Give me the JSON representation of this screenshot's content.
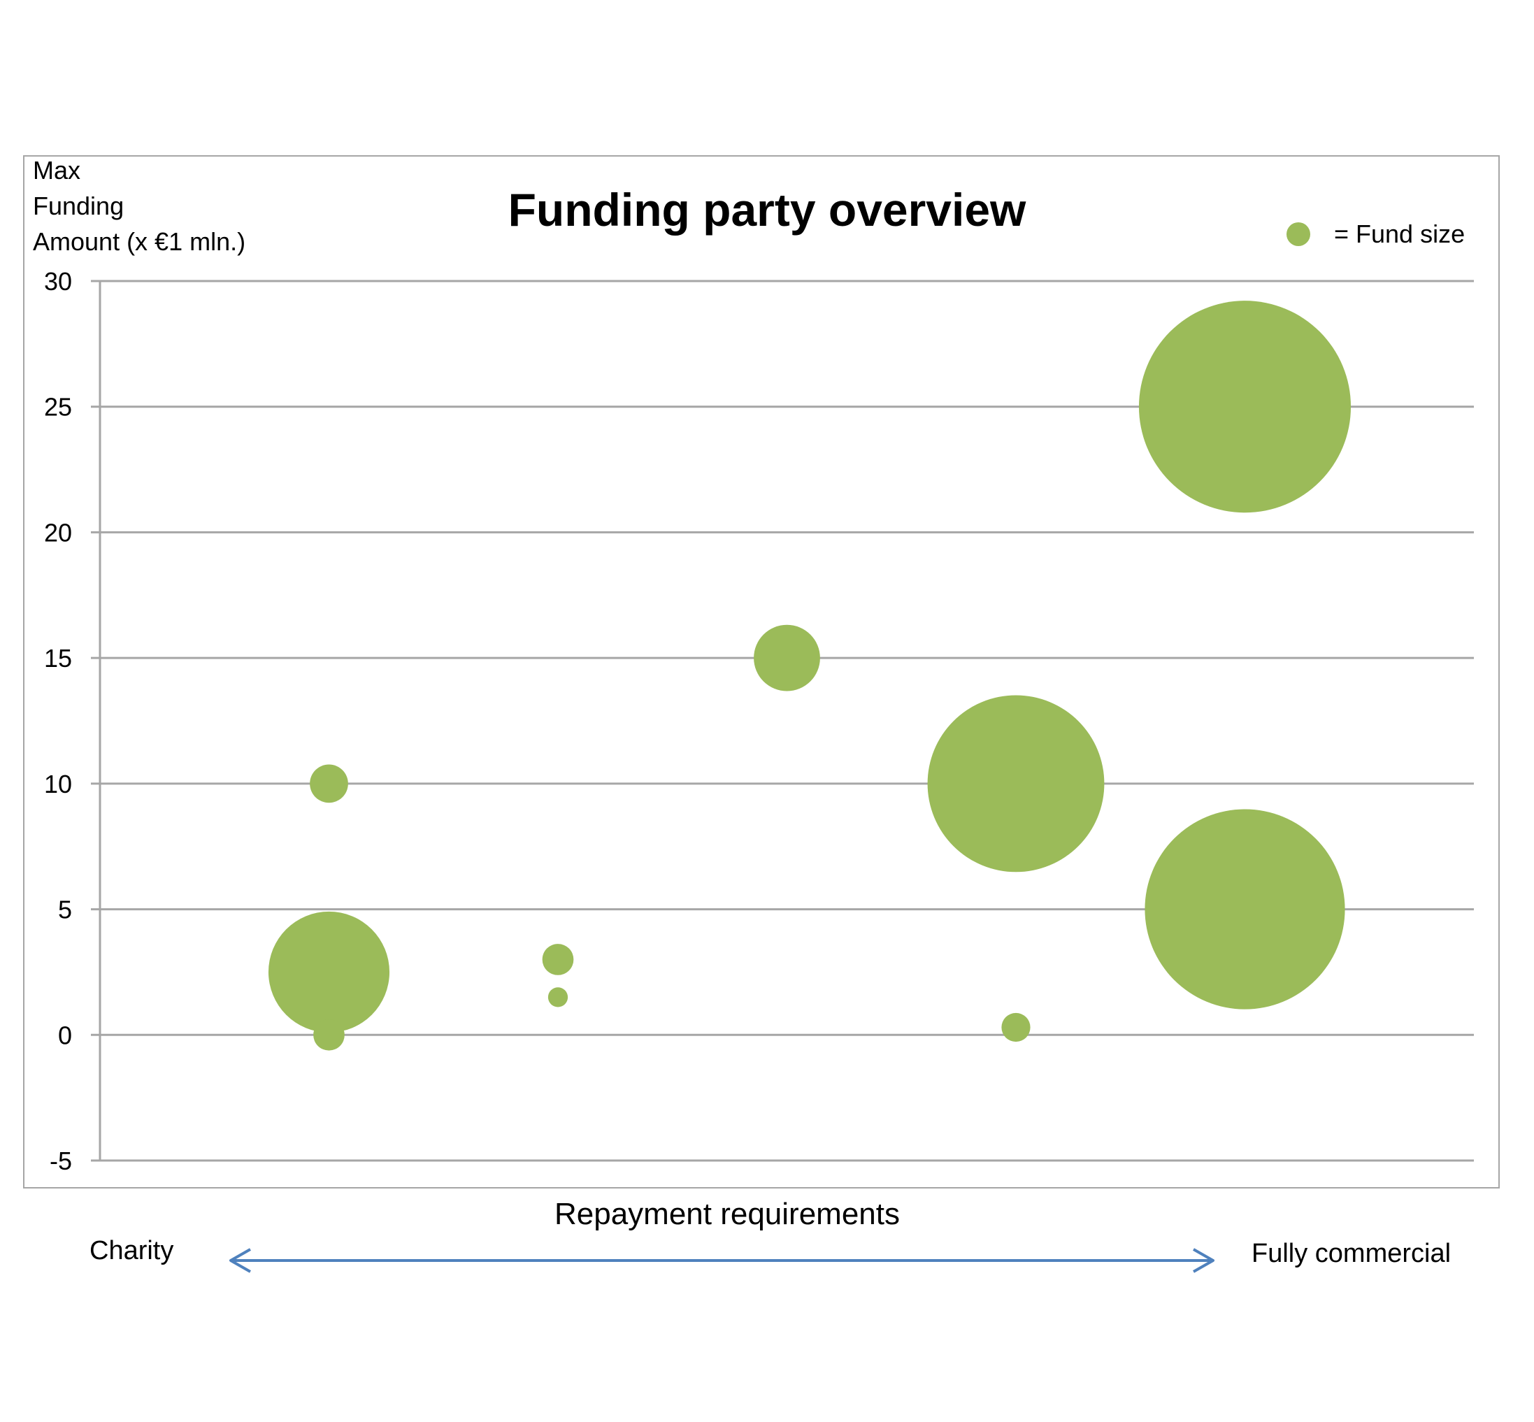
{
  "chart_data": {
    "type": "scatter",
    "title": "Funding party overview",
    "ylabel": [
      "Max",
      "Funding",
      "Amount (x €1 mln.)"
    ],
    "xlabel": "Repayment requirements",
    "x_scale_labels": {
      "left": "Charity",
      "right": "Fully commercial"
    },
    "ylim": [
      -5,
      30
    ],
    "yticks": [
      30,
      25,
      20,
      15,
      10,
      5,
      0,
      -5
    ],
    "ytick_labels": [
      "30",
      "25",
      "20",
      "15",
      "10",
      "5",
      "0",
      "-5"
    ],
    "xlim": [
      0,
      6
    ],
    "grid": true,
    "legend": {
      "label": "= Fund size",
      "placement": "top-right"
    },
    "bubble_color": "#9bbb59",
    "series": [
      {
        "points": [
          {
            "x": 1,
            "y": 10,
            "size": 3
          },
          {
            "x": 1,
            "y": 2.5,
            "size": 30
          },
          {
            "x": 1,
            "y": 0,
            "size": 2
          },
          {
            "x": 2,
            "y": 3,
            "size": 2
          },
          {
            "x": 2,
            "y": 1.5,
            "size": 0.8
          },
          {
            "x": 3,
            "y": 15,
            "size": 9
          },
          {
            "x": 4,
            "y": 10,
            "size": 64
          },
          {
            "x": 4,
            "y": 0.3,
            "size": 1.7
          },
          {
            "x": 5,
            "y": 25,
            "size": 92
          },
          {
            "x": 5,
            "y": 5,
            "size": 82
          }
        ]
      }
    ]
  },
  "arrow_color": "#4f81bd",
  "grid_color": "#a6a6a6"
}
